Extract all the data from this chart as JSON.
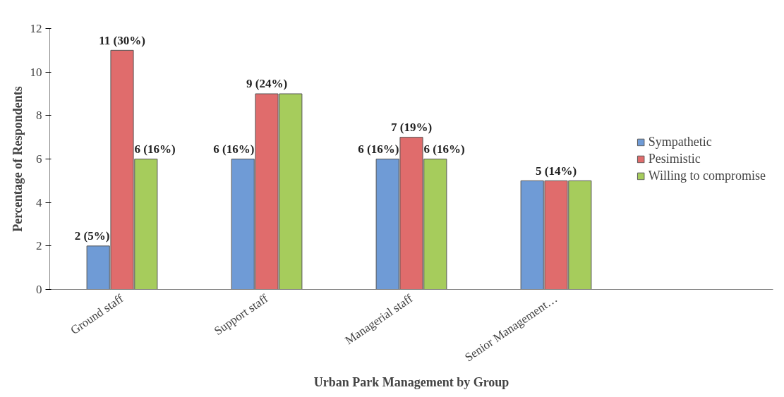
{
  "chart_data": {
    "type": "bar",
    "xlabel": "Urban Park Management by Group",
    "ylabel": "Percentage of Respondents",
    "categories": [
      "Ground staff",
      "Support staff",
      "Managerial staff",
      "Senior Management…",
      null
    ],
    "series": [
      {
        "name": "Sympathetic",
        "color": "#6f9bd6",
        "values": [
          2,
          6,
          6,
          5,
          null
        ],
        "value_labels": [
          "2 (5%)",
          "6 (16%)",
          "6 (16%)",
          null,
          null
        ]
      },
      {
        "name": "Pesimistic",
        "color": "#e06c6c",
        "values": [
          11,
          9,
          7,
          5,
          null
        ],
        "value_labels": [
          "11 (30%)",
          "9 (24%)",
          "7 (19%)",
          "5 (14%)",
          null
        ]
      },
      {
        "name": "Willing to compromise",
        "color": "#a6cc5c",
        "values": [
          6,
          9,
          6,
          5,
          null
        ],
        "value_labels": [
          "6 (16%)",
          null,
          "6 (16%)",
          null,
          null
        ]
      }
    ],
    "ylim": [
      0,
      12
    ],
    "yticks": [
      0,
      2,
      4,
      6,
      8,
      10,
      12
    ],
    "grid": false,
    "legend": "right"
  }
}
